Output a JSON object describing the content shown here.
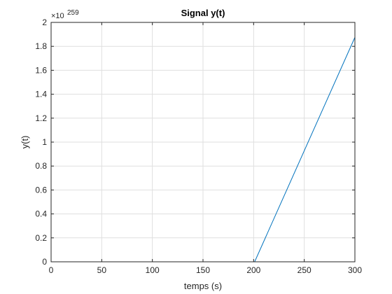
{
  "chart_data": {
    "type": "line",
    "title": "Signal y(t)",
    "xlabel": "temps (s)",
    "ylabel": "y(t)",
    "y_exponent_base": "×10",
    "y_exponent_power": "259",
    "xlim": [
      0,
      300
    ],
    "ylim": [
      0,
      2
    ],
    "xticks": [
      0,
      50,
      100,
      150,
      200,
      250,
      300
    ],
    "yticks": [
      0,
      0.2,
      0.4,
      0.6,
      0.8,
      1,
      1.2,
      1.4,
      1.6,
      1.8,
      2
    ],
    "xtick_labels": [
      "0",
      "50",
      "100",
      "150",
      "200",
      "250",
      "300"
    ],
    "ytick_labels": [
      "0",
      "0.2",
      "0.4",
      "0.6",
      "0.8",
      "1",
      "1.2",
      "1.4",
      "1.6",
      "1.8",
      "2"
    ],
    "grid": true,
    "series": [
      {
        "color": "#0072bd",
        "x": [
          0,
          200,
          201,
          300
        ],
        "y": [
          0,
          0,
          0,
          1.875
        ]
      }
    ]
  }
}
